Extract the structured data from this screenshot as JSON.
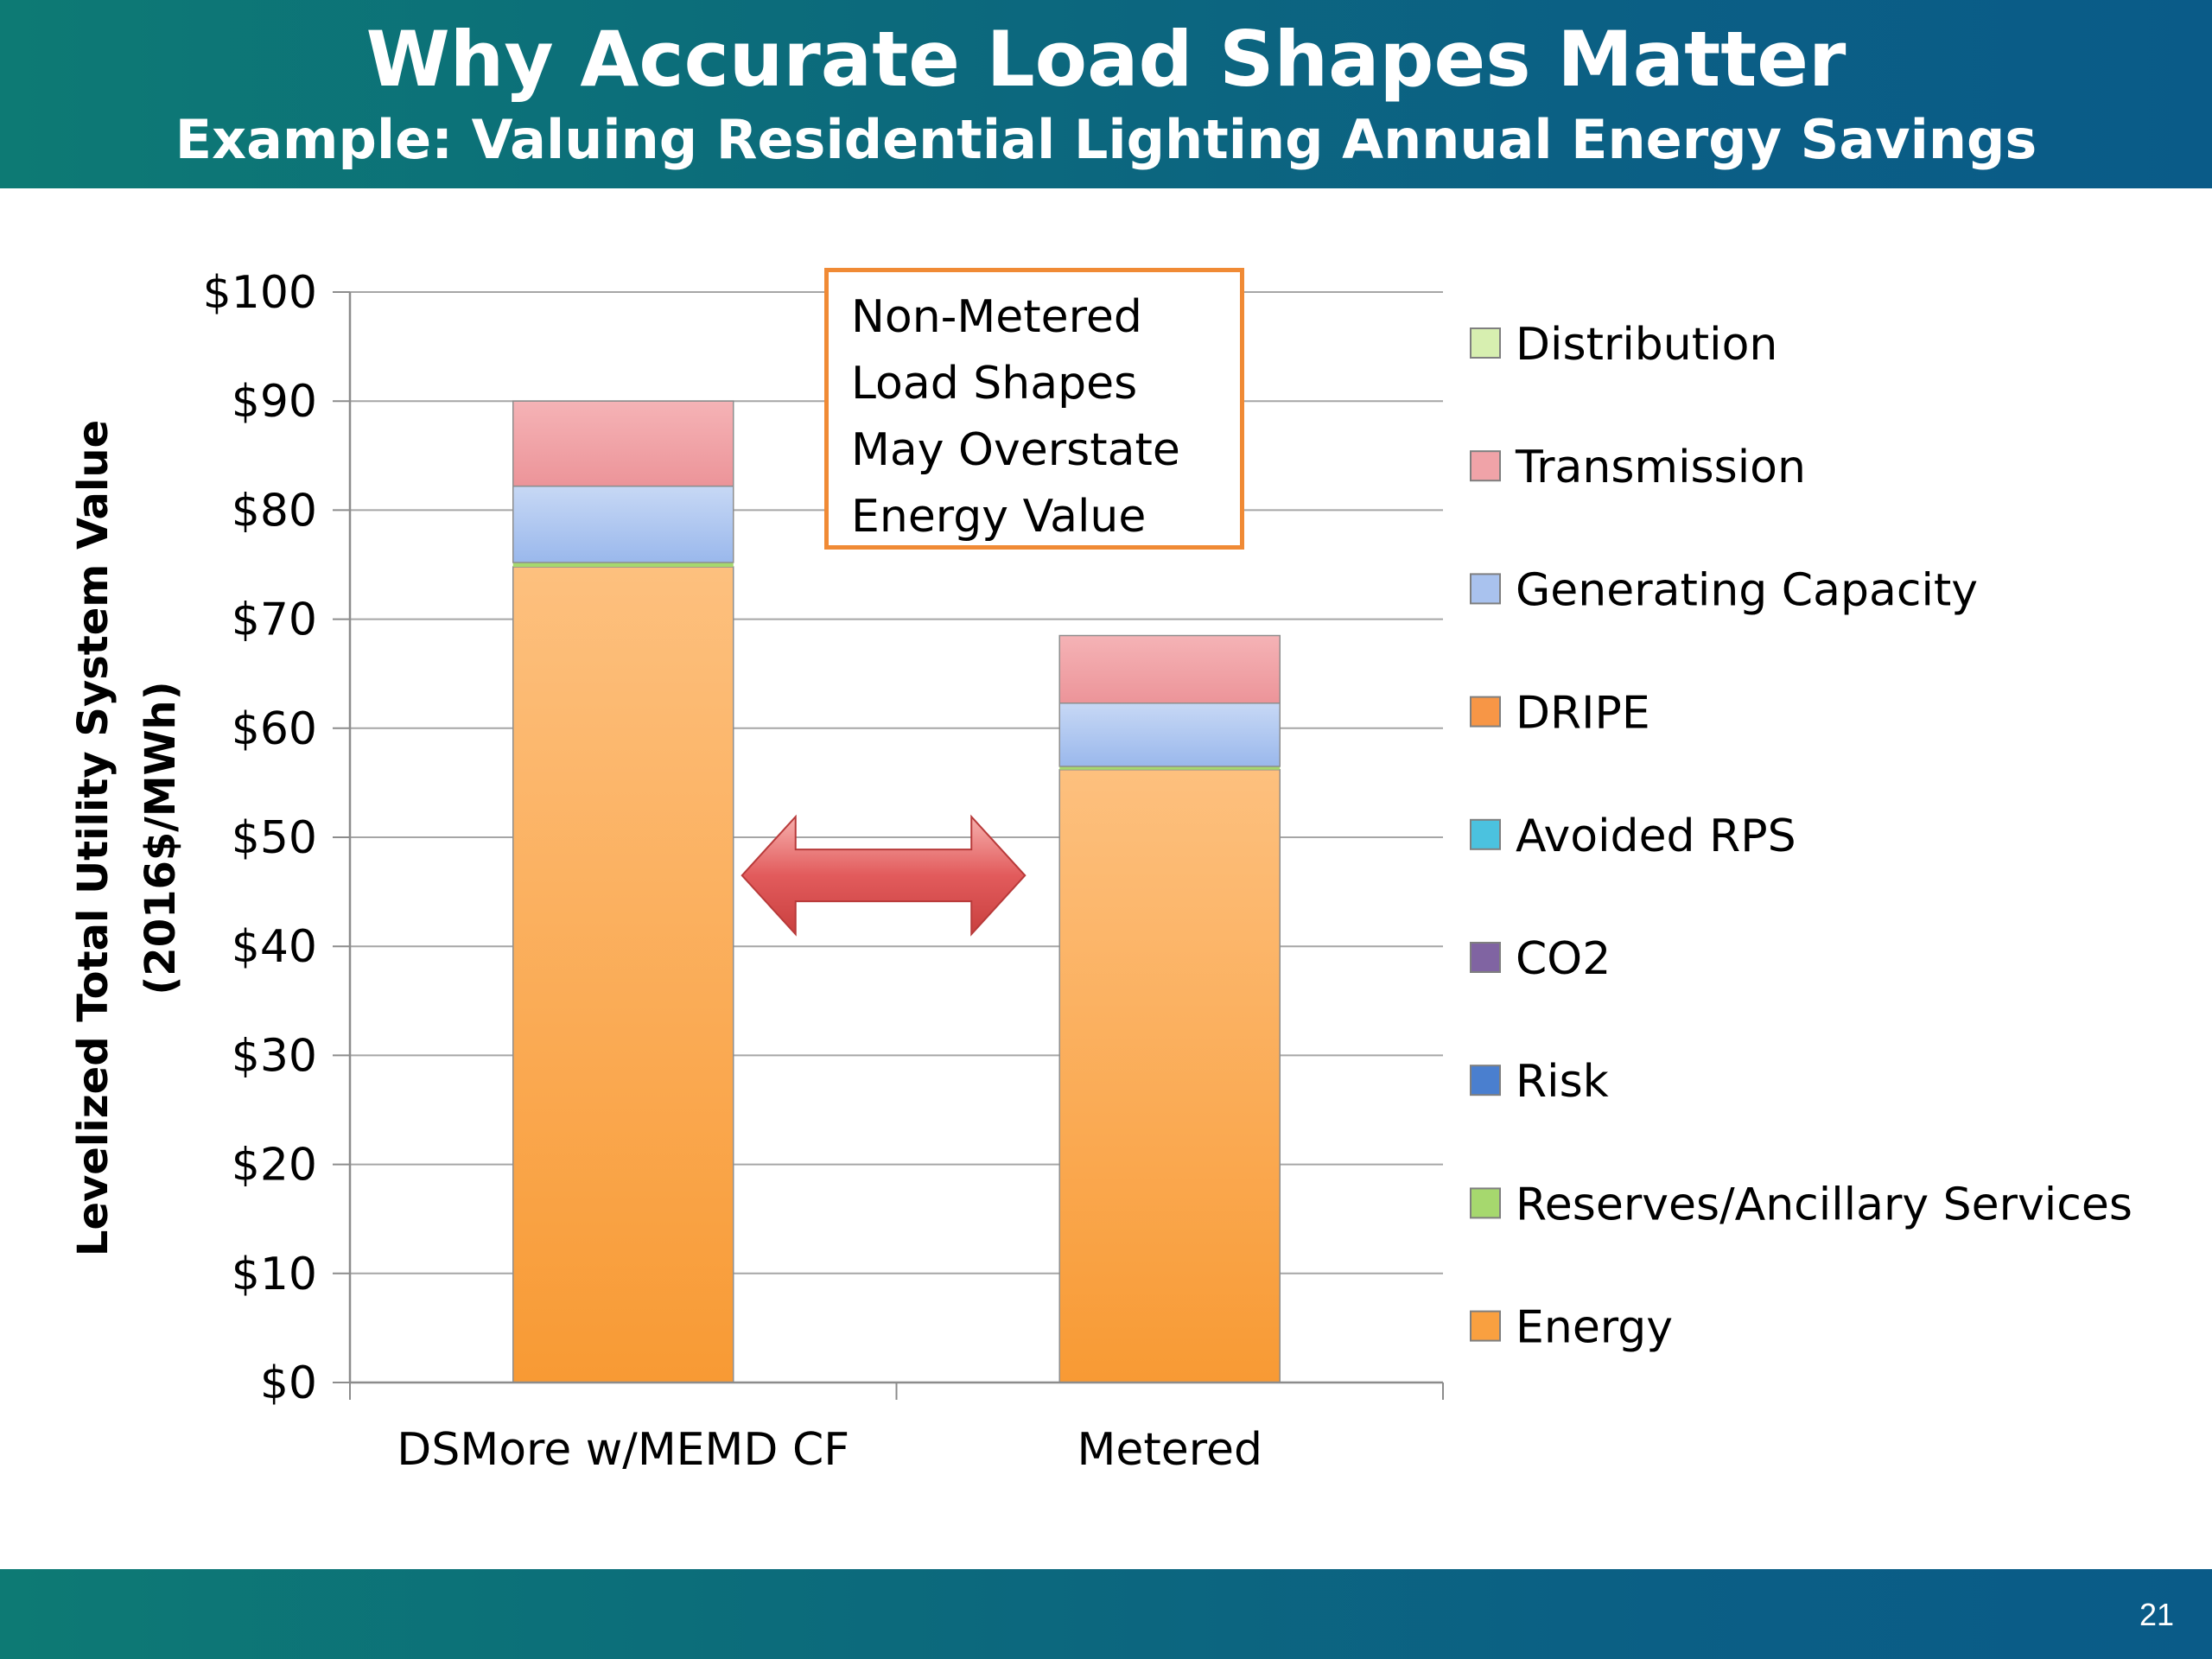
{
  "header": {
    "title": "Why Accurate Load Shapes Matter",
    "subtitle": "Example: Valuing Residential Lighting Annual Energy Savings"
  },
  "footer": {
    "page_number": "21"
  },
  "annotation": {
    "lines": [
      "Non-Metered",
      "Load Shapes",
      "May Overstate",
      "Energy Value"
    ],
    "border_color": "#f08a35"
  },
  "chart_data": {
    "type": "bar",
    "stacked": true,
    "title": "",
    "ylabel_line1": "Levelized Total Utility System Value",
    "ylabel_line2": "(2016$/MWh)",
    "xlabel": "",
    "categories": [
      "DSMore w/MEMD CF",
      "Metered"
    ],
    "ylim": [
      0,
      100
    ],
    "yticks": [
      0,
      10,
      20,
      30,
      40,
      50,
      60,
      70,
      80,
      90,
      100
    ],
    "ytick_labels": [
      "$0",
      "$10",
      "$20",
      "$30",
      "$40",
      "$50",
      "$60",
      "$70",
      "$80",
      "$90",
      "$100"
    ],
    "grid": true,
    "legend_position": "right",
    "series": [
      {
        "name": "Energy",
        "values": [
          74.8,
          56.2
        ],
        "color": "#f9a040"
      },
      {
        "name": "Reserves/Ancillary Services",
        "values": [
          0.4,
          0.3
        ],
        "color": "#a6d86e"
      },
      {
        "name": "Risk",
        "values": [
          0.0,
          0.0
        ],
        "color": "#4a7fcf"
      },
      {
        "name": "CO2",
        "values": [
          0.0,
          0.0
        ],
        "color": "#8064a2"
      },
      {
        "name": "Avoided RPS",
        "values": [
          0.0,
          0.0
        ],
        "color": "#4bc2df"
      },
      {
        "name": "DRIPE",
        "values": [
          0.0,
          0.0
        ],
        "color": "#f79646"
      },
      {
        "name": "Generating Capacity",
        "values": [
          7.0,
          5.8
        ],
        "color": "#a9c2ee"
      },
      {
        "name": "Transmission",
        "values": [
          7.8,
          6.2
        ],
        "color": "#f0a3a8"
      },
      {
        "name": "Distribution",
        "values": [
          0.0,
          0.0
        ],
        "color": "#d7efb0"
      }
    ],
    "legend_order": [
      "Distribution",
      "Transmission",
      "Generating Capacity",
      "DRIPE",
      "Avoided RPS",
      "CO2",
      "Risk",
      "Reserves/Ancillary Services",
      "Energy"
    ],
    "arrow": {
      "between_categories": [
        "DSMore w/MEMD CF",
        "Metered"
      ],
      "at_value": 46.5,
      "color": "#e0585c",
      "icon": "double-headed-arrow-icon"
    }
  }
}
